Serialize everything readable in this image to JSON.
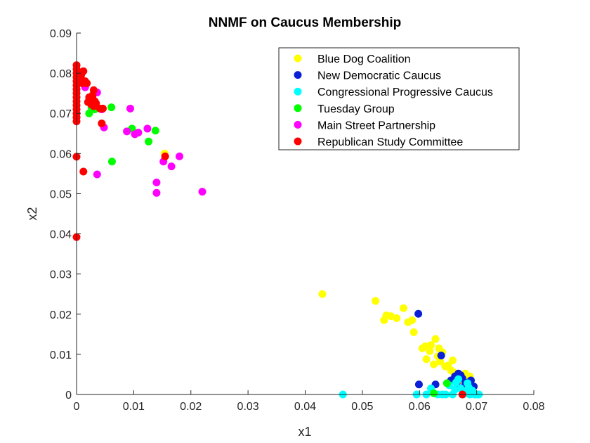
{
  "chart_data": {
    "type": "scatter",
    "title": "NNMF on Caucus Membership",
    "xlabel": "x1",
    "ylabel": "x2",
    "xlim": [
      0,
      0.08
    ],
    "ylim": [
      0,
      0.09
    ],
    "x_ticks": [
      "0",
      "0.01",
      "0.02",
      "0.03",
      "0.04",
      "0.05",
      "0.06",
      "0.07",
      "0.08"
    ],
    "y_ticks": [
      "0",
      "0.01",
      "0.02",
      "0.03",
      "0.04",
      "0.05",
      "0.06",
      "0.07",
      "0.08",
      "0.09"
    ],
    "grid": false,
    "legend_position": "top-right",
    "series": [
      {
        "name": "Blue Dog Coalition",
        "color": "#ffff00",
        "points": [
          [
            0.043,
            0.025
          ],
          [
            0.0523,
            0.0233
          ],
          [
            0.0538,
            0.0185
          ],
          [
            0.0542,
            0.0197
          ],
          [
            0.055,
            0.0195
          ],
          [
            0.056,
            0.019
          ],
          [
            0.0572,
            0.0215
          ],
          [
            0.058,
            0.018
          ],
          [
            0.0587,
            0.0185
          ],
          [
            0.059,
            0.0155
          ],
          [
            0.0605,
            0.0115
          ],
          [
            0.061,
            0.012
          ],
          [
            0.0612,
            0.0088
          ],
          [
            0.0618,
            0.0108
          ],
          [
            0.062,
            0.0123
          ],
          [
            0.0625,
            0.0075
          ],
          [
            0.0628,
            0.0138
          ],
          [
            0.0632,
            0.0095
          ],
          [
            0.0636,
            0.0082
          ],
          [
            0.064,
            0.0105
          ],
          [
            0.0645,
            0.007
          ],
          [
            0.065,
            0.0072
          ],
          [
            0.0655,
            0.006
          ],
          [
            0.066,
            0.0055
          ],
          [
            0.0665,
            0.005
          ],
          [
            0.0668,
            0.0045
          ],
          [
            0.0672,
            0.004
          ],
          [
            0.0676,
            0.0035
          ],
          [
            0.068,
            0.0052
          ],
          [
            0.0684,
            0.003
          ],
          [
            0.0688,
            0.0045
          ],
          [
            0.069,
            0.0025
          ],
          [
            0.0695,
            0.002
          ],
          [
            0.0634,
            0.0115
          ],
          [
            0.0658,
            0.0085
          ],
          [
            0.0154,
            0.06
          ]
        ]
      },
      {
        "name": "New Democratic Caucus",
        "color": "#0a1fd6",
        "points": [
          [
            0.0598,
            0.0201
          ],
          [
            0.0599,
            0.0025
          ],
          [
            0.0638,
            0.0097
          ],
          [
            0.0628,
            0.0025
          ],
          [
            0.0662,
            0.0045
          ],
          [
            0.0668,
            0.0052
          ],
          [
            0.0675,
            0.004
          ],
          [
            0.068,
            0.0025
          ],
          [
            0.0685,
            0.003
          ],
          [
            0.069,
            0.0035
          ],
          [
            0.0695,
            0.002
          ],
          [
            0.0672,
            0.0048
          ],
          [
            0.0655,
            0.0035
          ],
          [
            0.0665,
            0.0028
          ]
        ]
      },
      {
        "name": "Congressional Progressive Caucus",
        "color": "#00ffff",
        "points": [
          [
            0.0466,
            0.0
          ],
          [
            0.0595,
            0.0
          ],
          [
            0.0612,
            0.0
          ],
          [
            0.062,
            0.0015
          ],
          [
            0.0632,
            0.0
          ],
          [
            0.064,
            0.0
          ],
          [
            0.0646,
            0.0
          ],
          [
            0.0652,
            0.0023
          ],
          [
            0.0658,
            0.0
          ],
          [
            0.0664,
            0.003
          ],
          [
            0.0668,
            0.0038
          ],
          [
            0.0672,
            0.0015
          ],
          [
            0.0676,
            0.0
          ],
          [
            0.068,
            0.0008
          ],
          [
            0.0684,
            0.0028
          ],
          [
            0.0688,
            0.0
          ],
          [
            0.0692,
            0.001
          ],
          [
            0.0696,
            0.0
          ],
          [
            0.07,
            0.0
          ],
          [
            0.0704,
            0.0
          ],
          [
            0.0662,
            0.0012
          ],
          [
            0.0686,
            0.0018
          ]
        ]
      },
      {
        "name": "Tuesday Group",
        "color": "#00ff00",
        "points": [
          [
            0.0022,
            0.07
          ],
          [
            0.0026,
            0.0715
          ],
          [
            0.0032,
            0.071
          ],
          [
            0.0061,
            0.0715
          ],
          [
            0.0062,
            0.058
          ],
          [
            0.0097,
            0.0662
          ],
          [
            0.0126,
            0.063
          ],
          [
            0.0138,
            0.0657
          ],
          [
            0.0625,
            0.0003
          ],
          [
            0.0648,
            0.0028
          ]
        ]
      },
      {
        "name": "Main Street Partnership",
        "color": "#ff00ff",
        "points": [
          [
            0.0015,
            0.0765
          ],
          [
            0.0028,
            0.0738
          ],
          [
            0.0036,
            0.0752
          ],
          [
            0.0036,
            0.0548
          ],
          [
            0.0044,
            0.071
          ],
          [
            0.0048,
            0.0665
          ],
          [
            0.0088,
            0.0655
          ],
          [
            0.0094,
            0.0712
          ],
          [
            0.0102,
            0.0648
          ],
          [
            0.0108,
            0.0652
          ],
          [
            0.0124,
            0.0662
          ],
          [
            0.014,
            0.0502
          ],
          [
            0.014,
            0.0528
          ],
          [
            0.0152,
            0.058
          ],
          [
            0.0166,
            0.0568
          ],
          [
            0.018,
            0.0593
          ],
          [
            0.022,
            0.0505
          ]
        ]
      },
      {
        "name": "Republican Study Committee",
        "color": "#ff0000",
        "points": [
          [
            0.0,
            0.082
          ],
          [
            0.0,
            0.081
          ],
          [
            0.0,
            0.08
          ],
          [
            0.0,
            0.079
          ],
          [
            0.0,
            0.078
          ],
          [
            0.0,
            0.077
          ],
          [
            0.0,
            0.076
          ],
          [
            0.0,
            0.075
          ],
          [
            0.0,
            0.074
          ],
          [
            0.0,
            0.073
          ],
          [
            0.0,
            0.072
          ],
          [
            0.0,
            0.071
          ],
          [
            0.0,
            0.07
          ],
          [
            0.0,
            0.069
          ],
          [
            0.0,
            0.068
          ],
          [
            0.0,
            0.0592
          ],
          [
            0.0,
            0.0392
          ],
          [
            0.0005,
            0.0785
          ],
          [
            0.0008,
            0.0795
          ],
          [
            0.001,
            0.0775
          ],
          [
            0.0012,
            0.0805
          ],
          [
            0.0015,
            0.078
          ],
          [
            0.0018,
            0.0775
          ],
          [
            0.002,
            0.0728
          ],
          [
            0.0022,
            0.074
          ],
          [
            0.0025,
            0.0732
          ],
          [
            0.0026,
            0.0722
          ],
          [
            0.0028,
            0.0745
          ],
          [
            0.003,
            0.0758
          ],
          [
            0.003,
            0.0718
          ],
          [
            0.0032,
            0.073
          ],
          [
            0.0034,
            0.0725
          ],
          [
            0.0041,
            0.0712
          ],
          [
            0.0044,
            0.0675
          ],
          [
            0.0046,
            0.0712
          ],
          [
            0.0012,
            0.0555
          ],
          [
            0.0155,
            0.0593
          ],
          [
            0.0675,
            0.0
          ]
        ]
      }
    ]
  }
}
